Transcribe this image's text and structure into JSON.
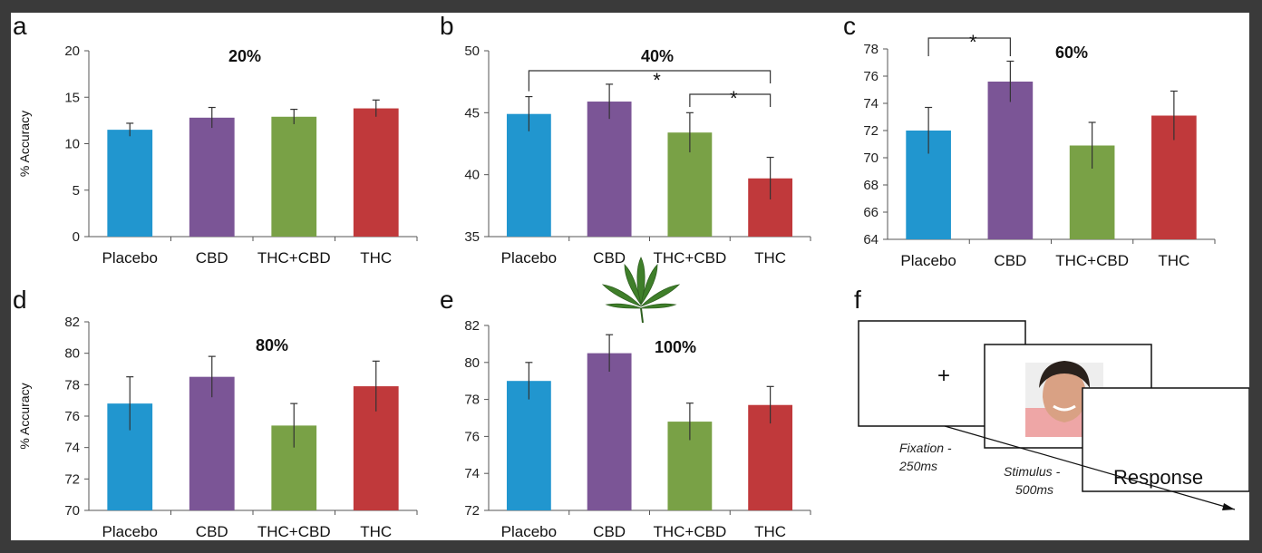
{
  "panel_letters": [
    "a",
    "b",
    "c",
    "d",
    "e",
    "f"
  ],
  "y_axis_label": "% Accuracy",
  "chart_data": [
    {
      "type": "bar",
      "panel": "a",
      "title": "20%",
      "categories": [
        "Placebo",
        "CBD",
        "THC+CBD",
        "THC"
      ],
      "values": [
        11.5,
        12.8,
        12.9,
        13.8
      ],
      "errors": [
        0.7,
        1.1,
        0.8,
        0.9
      ],
      "ylim": [
        0,
        20
      ],
      "yticks": [
        "0",
        "5",
        "10",
        "15",
        "20"
      ],
      "ylabel": "% Accuracy",
      "colors": [
        "#2196cf",
        "#7b5596",
        "#79a146",
        "#c0393b"
      ],
      "significance": []
    },
    {
      "type": "bar",
      "panel": "b",
      "title": "40%",
      "categories": [
        "Placebo",
        "CBD",
        "THC+CBD",
        "THC"
      ],
      "values": [
        44.9,
        45.9,
        43.4,
        39.7
      ],
      "errors": [
        1.4,
        1.4,
        1.6,
        1.7
      ],
      "ylim": [
        35,
        50
      ],
      "yticks": [
        "35",
        "40",
        "45",
        "50"
      ],
      "ylabel": "",
      "colors": [
        "#2196cf",
        "#7b5596",
        "#79a146",
        "#c0393b"
      ],
      "significance": [
        {
          "from": 0,
          "to": 3,
          "label": "*",
          "level": 0
        },
        {
          "from": 2,
          "to": 3,
          "label": "*",
          "level": 1
        }
      ]
    },
    {
      "type": "bar",
      "panel": "c",
      "title": "60%",
      "categories": [
        "Placebo",
        "CBD",
        "THC+CBD",
        "THC"
      ],
      "values": [
        72.0,
        75.6,
        70.9,
        73.1
      ],
      "errors": [
        1.7,
        1.5,
        1.7,
        1.8
      ],
      "ylim": [
        64,
        78
      ],
      "yticks": [
        "64",
        "66",
        "68",
        "70",
        "72",
        "74",
        "76",
        "78"
      ],
      "ylabel": "",
      "colors": [
        "#2196cf",
        "#7b5596",
        "#79a146",
        "#c0393b"
      ],
      "significance": [
        {
          "from": 0,
          "to": 1,
          "label": "*",
          "level": 0
        }
      ]
    },
    {
      "type": "bar",
      "panel": "d",
      "title": "80%",
      "categories": [
        "Placebo",
        "CBD",
        "THC+CBD",
        "THC"
      ],
      "values": [
        76.8,
        78.5,
        75.4,
        77.9
      ],
      "errors": [
        1.7,
        1.3,
        1.4,
        1.6
      ],
      "ylim": [
        70,
        82
      ],
      "yticks": [
        "70",
        "72",
        "74",
        "76",
        "78",
        "80",
        "82"
      ],
      "ylabel": "% Accuracy",
      "colors": [
        "#2196cf",
        "#7b5596",
        "#79a146",
        "#c0393b"
      ],
      "significance": []
    },
    {
      "type": "bar",
      "panel": "e",
      "title": "100%",
      "categories": [
        "Placebo",
        "CBD",
        "THC+CBD",
        "THC"
      ],
      "values": [
        79.0,
        80.5,
        76.8,
        77.7
      ],
      "errors": [
        1.0,
        1.0,
        1.0,
        1.0
      ],
      "ylim": [
        72,
        82
      ],
      "yticks": [
        "72",
        "74",
        "76",
        "78",
        "80",
        "82"
      ],
      "ylabel": "",
      "colors": [
        "#2196cf",
        "#7b5596",
        "#79a146",
        "#c0393b"
      ],
      "significance": []
    }
  ],
  "sequence": {
    "fixation_symbol": "+",
    "fixation_label_1": "Fixation -",
    "fixation_label_2": "250ms",
    "stimulus_label_1": "Stimulus -",
    "stimulus_label_2": "500ms",
    "response_label": "Response"
  }
}
